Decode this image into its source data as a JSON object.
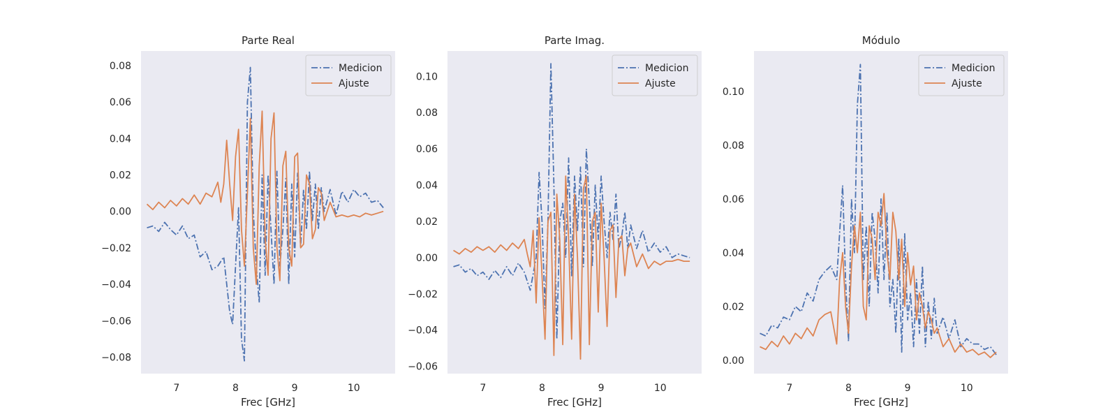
{
  "style": {
    "axes_bg": "#eaeaf2",
    "series_colors": [
      "#4c72b0",
      "#dd8452"
    ],
    "text_color": "#262626"
  },
  "chart_data": [
    {
      "type": "line",
      "title": "Parte Real",
      "xlabel": "Frec [GHz]",
      "ylabel": "",
      "xlim": [
        6.4,
        10.7
      ],
      "ylim": [
        -0.089,
        0.088
      ],
      "xticks": [
        7,
        8,
        9,
        10
      ],
      "yticks": [
        -0.08,
        -0.06,
        -0.04,
        -0.02,
        0.0,
        0.02,
        0.04,
        0.06,
        0.08
      ],
      "grid": false,
      "legend": "upper-right",
      "series": [
        {
          "name": "Medicion",
          "style": "dashdot",
          "x": [
            6.5,
            6.6,
            6.7,
            6.8,
            6.9,
            7.0,
            7.1,
            7.2,
            7.3,
            7.4,
            7.5,
            7.6,
            7.7,
            7.8,
            7.9,
            7.95,
            8.0,
            8.05,
            8.1,
            8.15,
            8.2,
            8.25,
            8.3,
            8.35,
            8.4,
            8.45,
            8.5,
            8.55,
            8.6,
            8.65,
            8.7,
            8.75,
            8.8,
            8.85,
            8.9,
            8.95,
            9.0,
            9.05,
            9.1,
            9.15,
            9.2,
            9.25,
            9.3,
            9.35,
            9.4,
            9.45,
            9.5,
            9.6,
            9.7,
            9.8,
            9.9,
            10.0,
            10.1,
            10.2,
            10.3,
            10.4,
            10.5
          ],
          "y": [
            -0.009,
            -0.008,
            -0.011,
            -0.006,
            -0.01,
            -0.013,
            -0.008,
            -0.015,
            -0.013,
            -0.025,
            -0.022,
            -0.032,
            -0.03,
            -0.025,
            -0.055,
            -0.062,
            -0.03,
            0.002,
            -0.07,
            -0.082,
            0.06,
            0.079,
            0.0,
            -0.03,
            -0.05,
            0.02,
            -0.035,
            0.02,
            -0.01,
            -0.04,
            0.022,
            -0.03,
            -0.01,
            0.018,
            -0.04,
            0.015,
            -0.025,
            0.021,
            -0.02,
            0.012,
            -0.01,
            0.022,
            -0.005,
            0.015,
            -0.01,
            0.013,
            0.0,
            0.012,
            -0.002,
            0.011,
            0.005,
            0.012,
            0.008,
            0.01,
            0.005,
            0.006,
            0.002
          ]
        },
        {
          "name": "Ajuste",
          "style": "solid",
          "x": [
            6.5,
            6.6,
            6.7,
            6.8,
            6.9,
            7.0,
            7.1,
            7.2,
            7.3,
            7.4,
            7.5,
            7.6,
            7.7,
            7.75,
            7.8,
            7.85,
            7.9,
            7.95,
            8.0,
            8.05,
            8.1,
            8.15,
            8.2,
            8.25,
            8.3,
            8.35,
            8.4,
            8.45,
            8.5,
            8.55,
            8.6,
            8.65,
            8.7,
            8.75,
            8.8,
            8.85,
            8.9,
            8.95,
            9.0,
            9.05,
            9.1,
            9.15,
            9.2,
            9.25,
            9.3,
            9.35,
            9.4,
            9.45,
            9.5,
            9.6,
            9.7,
            9.8,
            9.9,
            10.0,
            10.1,
            10.2,
            10.3,
            10.4,
            10.5
          ],
          "y": [
            0.004,
            0.001,
            0.005,
            0.002,
            0.006,
            0.003,
            0.007,
            0.004,
            0.009,
            0.004,
            0.01,
            0.008,
            0.016,
            0.005,
            0.015,
            0.039,
            0.015,
            -0.005,
            0.03,
            0.045,
            -0.01,
            -0.03,
            0.01,
            0.051,
            -0.02,
            -0.04,
            0.025,
            0.055,
            -0.015,
            -0.035,
            0.04,
            0.054,
            -0.02,
            -0.038,
            0.025,
            0.033,
            -0.02,
            -0.03,
            0.03,
            0.032,
            -0.02,
            -0.018,
            0.02,
            0.015,
            -0.015,
            -0.01,
            0.013,
            0.01,
            -0.005,
            0.005,
            -0.003,
            -0.002,
            -0.003,
            -0.002,
            -0.003,
            -0.001,
            -0.002,
            -0.001,
            0.0
          ]
        }
      ]
    },
    {
      "type": "line",
      "title": "Parte Imag.",
      "xlabel": "Frec [GHz]",
      "ylabel": "",
      "xlim": [
        6.4,
        10.7
      ],
      "ylim": [
        -0.064,
        0.114
      ],
      "xticks": [
        7,
        8,
        9,
        10
      ],
      "yticks": [
        -0.06,
        -0.04,
        -0.02,
        0.0,
        0.02,
        0.04,
        0.06,
        0.08,
        0.1
      ],
      "grid": false,
      "legend": "upper-right",
      "series": [
        {
          "name": "Medicion",
          "style": "dashdot",
          "x": [
            6.5,
            6.6,
            6.7,
            6.8,
            6.9,
            7.0,
            7.1,
            7.2,
            7.3,
            7.4,
            7.5,
            7.6,
            7.7,
            7.8,
            7.9,
            7.95,
            8.0,
            8.05,
            8.1,
            8.15,
            8.2,
            8.25,
            8.3,
            8.35,
            8.4,
            8.45,
            8.5,
            8.55,
            8.6,
            8.65,
            8.7,
            8.75,
            8.8,
            8.85,
            8.9,
            8.95,
            9.0,
            9.05,
            9.1,
            9.15,
            9.2,
            9.25,
            9.3,
            9.35,
            9.4,
            9.45,
            9.5,
            9.6,
            9.7,
            9.8,
            9.9,
            10.0,
            10.1,
            10.2,
            10.3,
            10.4,
            10.5
          ],
          "y": [
            -0.005,
            -0.004,
            -0.008,
            -0.006,
            -0.01,
            -0.008,
            -0.012,
            -0.007,
            -0.011,
            -0.005,
            -0.01,
            -0.003,
            -0.008,
            -0.018,
            0.0,
            0.047,
            0.02,
            -0.028,
            0.02,
            0.107,
            0.04,
            -0.045,
            0.02,
            0.03,
            0.0,
            0.055,
            -0.01,
            0.045,
            0.015,
            0.05,
            -0.005,
            0.06,
            0.03,
            -0.005,
            0.04,
            0.01,
            0.045,
            0.02,
            0.0,
            0.025,
            0.01,
            0.035,
            0.005,
            0.012,
            0.025,
            0.005,
            0.018,
            0.005,
            0.015,
            0.003,
            0.008,
            0.003,
            0.006,
            0.0,
            0.002,
            0.001,
            0.0
          ]
        },
        {
          "name": "Ajuste",
          "style": "solid",
          "x": [
            6.5,
            6.6,
            6.7,
            6.8,
            6.9,
            7.0,
            7.1,
            7.2,
            7.3,
            7.4,
            7.5,
            7.6,
            7.7,
            7.75,
            7.8,
            7.85,
            7.9,
            7.95,
            8.0,
            8.05,
            8.1,
            8.15,
            8.2,
            8.25,
            8.3,
            8.35,
            8.4,
            8.45,
            8.5,
            8.55,
            8.6,
            8.65,
            8.7,
            8.75,
            8.8,
            8.85,
            8.9,
            8.95,
            9.0,
            9.05,
            9.1,
            9.15,
            9.2,
            9.25,
            9.3,
            9.35,
            9.4,
            9.45,
            9.5,
            9.6,
            9.7,
            9.8,
            9.9,
            10.0,
            10.1,
            10.2,
            10.3,
            10.4,
            10.5
          ],
          "y": [
            0.004,
            0.002,
            0.005,
            0.003,
            0.006,
            0.004,
            0.006,
            0.003,
            0.007,
            0.004,
            0.008,
            0.005,
            0.01,
            0.002,
            -0.005,
            0.015,
            -0.025,
            0.022,
            -0.01,
            -0.045,
            0.02,
            0.025,
            -0.054,
            0.035,
            0.01,
            -0.048,
            0.045,
            0.01,
            -0.045,
            0.035,
            0.0,
            -0.056,
            0.038,
            0.045,
            -0.048,
            0.02,
            0.025,
            -0.03,
            0.03,
            0.0,
            -0.038,
            0.015,
            0.018,
            -0.022,
            0.01,
            0.012,
            -0.01,
            0.005,
            0.008,
            -0.005,
            0.002,
            -0.006,
            -0.002,
            -0.004,
            -0.002,
            -0.002,
            -0.001,
            -0.002,
            -0.002
          ]
        }
      ]
    },
    {
      "type": "line",
      "title": "Módulo",
      "xlabel": "Frec [GHz]",
      "ylabel": "",
      "xlim": [
        6.4,
        10.7
      ],
      "ylim": [
        -0.005,
        0.115
      ],
      "xticks": [
        7,
        8,
        9,
        10
      ],
      "yticks": [
        0.0,
        0.02,
        0.04,
        0.06,
        0.08,
        0.1
      ],
      "grid": false,
      "legend": "upper-right",
      "series": [
        {
          "name": "Medicion",
          "style": "dashdot",
          "x": [
            6.5,
            6.6,
            6.7,
            6.8,
            6.9,
            7.0,
            7.1,
            7.2,
            7.3,
            7.4,
            7.5,
            7.6,
            7.7,
            7.8,
            7.9,
            7.95,
            8.0,
            8.05,
            8.1,
            8.15,
            8.2,
            8.25,
            8.3,
            8.35,
            8.4,
            8.45,
            8.5,
            8.55,
            8.6,
            8.65,
            8.7,
            8.75,
            8.8,
            8.85,
            8.9,
            8.95,
            9.0,
            9.05,
            9.1,
            9.15,
            9.2,
            9.25,
            9.3,
            9.35,
            9.4,
            9.45,
            9.5,
            9.6,
            9.7,
            9.8,
            9.9,
            10.0,
            10.1,
            10.2,
            10.3,
            10.4,
            10.5
          ],
          "y": [
            0.01,
            0.009,
            0.013,
            0.012,
            0.016,
            0.015,
            0.02,
            0.018,
            0.025,
            0.022,
            0.03,
            0.033,
            0.035,
            0.03,
            0.065,
            0.03,
            0.007,
            0.06,
            0.04,
            0.095,
            0.11,
            0.03,
            0.05,
            0.02,
            0.055,
            0.045,
            0.025,
            0.06,
            0.03,
            0.055,
            0.02,
            0.03,
            0.01,
            0.045,
            0.003,
            0.047,
            0.015,
            0.025,
            0.005,
            0.03,
            0.01,
            0.035,
            0.005,
            0.022,
            0.008,
            0.023,
            0.01,
            0.016,
            0.008,
            0.015,
            0.005,
            0.008,
            0.006,
            0.006,
            0.004,
            0.005,
            0.002
          ]
        },
        {
          "name": "Ajuste",
          "style": "solid",
          "x": [
            6.5,
            6.6,
            6.7,
            6.8,
            6.9,
            7.0,
            7.1,
            7.2,
            7.3,
            7.4,
            7.5,
            7.6,
            7.7,
            7.75,
            7.8,
            7.85,
            7.9,
            7.95,
            8.0,
            8.05,
            8.1,
            8.15,
            8.2,
            8.25,
            8.3,
            8.35,
            8.4,
            8.45,
            8.5,
            8.55,
            8.6,
            8.65,
            8.7,
            8.75,
            8.8,
            8.85,
            8.9,
            8.95,
            9.0,
            9.05,
            9.1,
            9.15,
            9.2,
            9.25,
            9.3,
            9.35,
            9.4,
            9.45,
            9.5,
            9.6,
            9.7,
            9.8,
            9.9,
            10.0,
            10.1,
            10.2,
            10.3,
            10.4,
            10.5
          ],
          "y": [
            0.005,
            0.004,
            0.007,
            0.005,
            0.009,
            0.006,
            0.01,
            0.008,
            0.012,
            0.009,
            0.015,
            0.017,
            0.018,
            0.012,
            0.006,
            0.03,
            0.04,
            0.02,
            0.01,
            0.035,
            0.05,
            0.04,
            0.055,
            0.02,
            0.015,
            0.05,
            0.045,
            0.03,
            0.055,
            0.05,
            0.062,
            0.04,
            0.03,
            0.055,
            0.048,
            0.03,
            0.045,
            0.02,
            0.04,
            0.028,
            0.035,
            0.015,
            0.025,
            0.02,
            0.012,
            0.018,
            0.015,
            0.01,
            0.012,
            0.005,
            0.008,
            0.003,
            0.006,
            0.003,
            0.004,
            0.002,
            0.003,
            0.001,
            0.003
          ]
        }
      ]
    }
  ]
}
